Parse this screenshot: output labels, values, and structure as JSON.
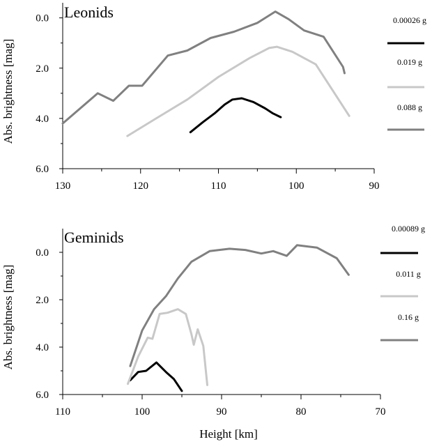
{
  "figure": {
    "xlabel": "Height [km]"
  },
  "chart_data": [
    {
      "type": "line",
      "title": "Leonids",
      "xlabel": "",
      "ylabel": "Abs. brightness [mag]",
      "xlim": [
        130,
        90
      ],
      "ylim": [
        -0.6,
        6.0
      ],
      "x_ticks": [
        130,
        120,
        110,
        100,
        90
      ],
      "x_tick_labels": [
        "130",
        "120",
        "110",
        "100",
        "90"
      ],
      "y_ticks": [
        0,
        2,
        4,
        6
      ],
      "y_tick_labels": [
        "0.0",
        "2.0",
        "4.0",
        "6.0"
      ],
      "y_inverted": true,
      "grid": false,
      "legend_position": "right",
      "series": [
        {
          "name": "0.00026 g",
          "color": "#000000",
          "x": [
            113.6,
            112,
            110.5,
            109.2,
            108.2,
            107,
            105.5,
            104,
            103,
            102
          ],
          "y": [
            4.55,
            4.15,
            3.8,
            3.45,
            3.25,
            3.2,
            3.35,
            3.6,
            3.8,
            3.95
          ]
        },
        {
          "name": "0.019 g",
          "color": "#c8c8c8",
          "x": [
            121.7,
            118,
            114,
            110,
            106,
            103.5,
            102.5,
            100.5,
            97.5,
            93.2
          ],
          "y": [
            4.7,
            4.0,
            3.25,
            2.35,
            1.6,
            1.2,
            1.15,
            1.35,
            1.85,
            3.9
          ]
        },
        {
          "name": "0.088 g",
          "color": "#808080",
          "x": [
            130,
            125.5,
            123.5,
            121.5,
            119.8,
            116.5,
            114,
            111,
            108,
            105,
            102.7,
            101,
            99,
            96.5,
            94,
            93.8
          ],
          "y": [
            4.2,
            3.0,
            3.3,
            2.7,
            2.7,
            1.5,
            1.3,
            0.8,
            0.55,
            0.2,
            -0.25,
            0.05,
            0.5,
            0.75,
            1.95,
            2.2
          ]
        }
      ]
    },
    {
      "type": "line",
      "title": "Geminids",
      "xlabel": "Height [km]",
      "ylabel": "Abs. brightness [mag]",
      "xlim": [
        110,
        70
      ],
      "ylim": [
        -1.0,
        6.0
      ],
      "x_ticks": [
        110,
        100,
        90,
        80,
        70
      ],
      "x_tick_labels": [
        "110",
        "100",
        "90",
        "80",
        "70"
      ],
      "y_ticks": [
        0,
        2,
        4,
        6
      ],
      "y_tick_labels": [
        "0.0",
        "2.0",
        "4.0",
        "6.0"
      ],
      "y_inverted": true,
      "grid": false,
      "legend_position": "right",
      "series": [
        {
          "name": "0.00089 g",
          "color": "#000000",
          "x": [
            101.5,
            100.5,
            99.5,
            98.2,
            97,
            96,
            95
          ],
          "y": [
            5.4,
            5.05,
            5.0,
            4.65,
            5.05,
            5.35,
            5.85
          ]
        },
        {
          "name": "0.011 g",
          "color": "#c8c8c8",
          "x": [
            101.8,
            100.5,
            99.3,
            98.7,
            97.8,
            96.8,
            95.5,
            94.5,
            93.8,
            93.5,
            93,
            92.3,
            91.8
          ],
          "y": [
            5.55,
            4.4,
            3.6,
            3.65,
            2.6,
            2.55,
            2.4,
            2.6,
            3.45,
            3.9,
            3.25,
            3.95,
            5.6
          ]
        },
        {
          "name": "0.16 g",
          "color": "#808080",
          "x": [
            101.5,
            100,
            98.5,
            97,
            95.5,
            93.8,
            91.5,
            89,
            87,
            85,
            83.5,
            81.8,
            80.5,
            78,
            75.5,
            74
          ],
          "y": [
            4.8,
            3.3,
            2.4,
            1.85,
            1.1,
            0.4,
            -0.05,
            -0.15,
            -0.1,
            0.05,
            -0.05,
            0.15,
            -0.3,
            -0.2,
            0.25,
            0.95
          ]
        }
      ]
    }
  ]
}
